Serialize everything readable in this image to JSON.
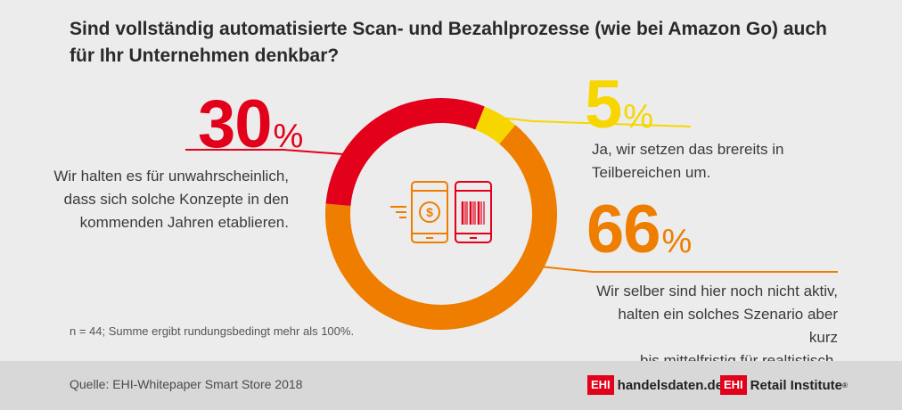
{
  "title": "Sind vollständig automatisierte Scan- und Bezahlprozesse (wie bei Amazon Go) auch für Ihr Unternehmen denkbar?",
  "chart_data": {
    "type": "pie",
    "title": "Sind vollständig automatisierte Scan- und Bezahlprozesse (wie bei Amazon Go) auch für Ihr Unternehmen denkbar?",
    "slices": [
      {
        "label": "Ja, wir setzen das brereits in Teilbereichen um.",
        "value": 5,
        "color": "#f7d600"
      },
      {
        "label": "Wir selber sind hier noch nicht aktiv, halten ein solches Szenario aber kurz bis mittelfristig für realtistisch.",
        "value": 66,
        "color": "#ef7d00"
      },
      {
        "label": "Wir halten es für unwahrscheinlich, dass sich solche Konzepte in den kommenden Jahren etablieren.",
        "value": 30,
        "color": "#e2001a"
      }
    ]
  },
  "labels": {
    "red": {
      "number": "30",
      "sign": "%",
      "lines": [
        "Wir halten es für unwahrscheinlich,",
        "dass sich solche Konzepte in den",
        "kommenden Jahren etablieren."
      ]
    },
    "yellow": {
      "number": "5",
      "sign": "%",
      "lines": [
        "Ja, wir setzen das brereits in",
        "Teilbereichen um."
      ]
    },
    "orange": {
      "number": "66",
      "sign": "%",
      "lines": [
        "Wir selber sind hier noch nicht aktiv,",
        "halten ein solches Szenario aber kurz",
        "bis mittelfristig für realtistisch."
      ]
    }
  },
  "note": "n = 44; Summe ergibt rundungsbedingt mehr als 100%.",
  "footer": {
    "source": "Quelle: EHI-Whitepaper Smart Store 2018",
    "logo1_box": "EHI",
    "logo1_text": "handelsdaten.de",
    "logo2_box": "EHI",
    "logo2_text": "Retail Institute",
    "logo2_mark": "®"
  },
  "icons": [
    "payment-phone-icon",
    "barcode-phone-icon"
  ],
  "colors": {
    "red": "#e2001a",
    "yellow": "#f7d600",
    "orange": "#ef7d00",
    "background": "#ececec",
    "footer": "#d8d8d8"
  }
}
